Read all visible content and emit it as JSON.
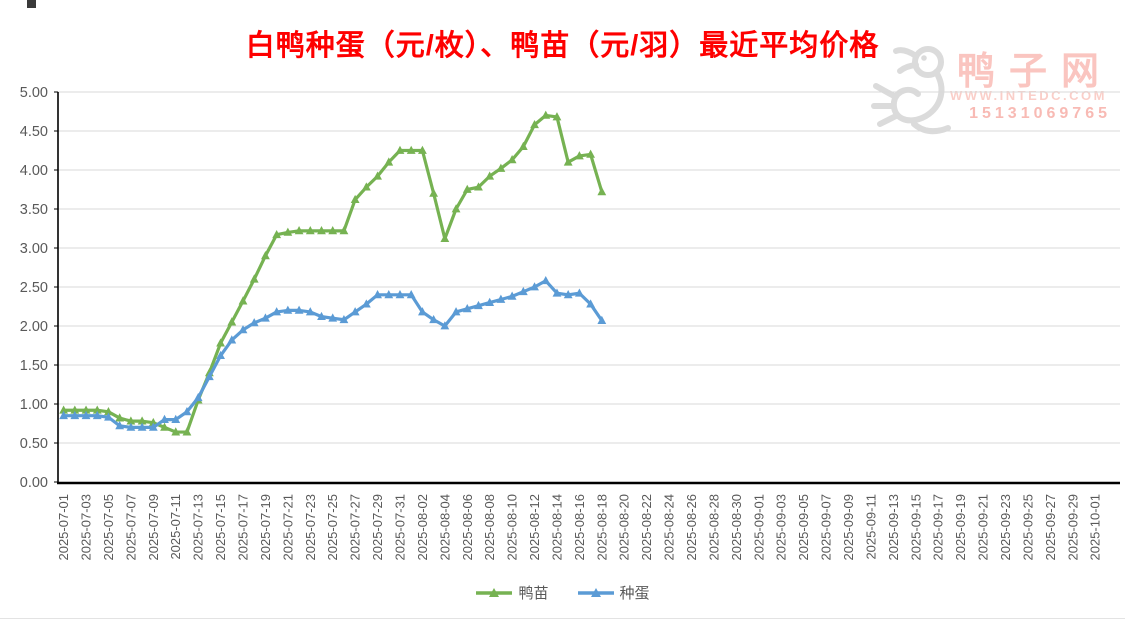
{
  "title": "白鸭种蛋（元/枚）、鸭苗（元/羽）最近平均价格",
  "watermark": {
    "site_name": "鸭子网",
    "url": "WWW.INTEDC.COM",
    "phone": "15131069765",
    "logo": "duck-logo"
  },
  "legend": {
    "items": [
      "鸭苗",
      "种蛋"
    ]
  },
  "colors": {
    "title_red": "#FE0000",
    "duckling_green": "#76B252",
    "egg_blue": "#5B9BD5",
    "axis_text": "#595959",
    "gridline": "#D9D9D9",
    "axis_line": "#000000",
    "watermark_pink": "#F6968C",
    "watermark_gray": "#DBDBDB"
  },
  "chart_data": {
    "type": "line",
    "title": "白鸭种蛋（元/枚）、鸭苗（元/羽）最近平均价格",
    "marker": "triangle",
    "grid": "horizontal",
    "legend_position": "bottom",
    "ylim": [
      0,
      5
    ],
    "y_ticks": [
      "0.00",
      "0.50",
      "1.00",
      "1.50",
      "2.00",
      "2.50",
      "3.00",
      "3.50",
      "4.00",
      "4.50",
      "5.00"
    ],
    "x_axis_span": [
      "2025-07-01",
      "2025-10-01"
    ],
    "x_tick_labels": [
      "2025-07-01",
      "2025-07-03",
      "2025-07-05",
      "2025-07-07",
      "2025-07-09",
      "2025-07-11",
      "2025-07-13",
      "2025-07-15",
      "2025-07-17",
      "2025-07-19",
      "2025-07-21",
      "2025-07-23",
      "2025-07-25",
      "2025-07-27",
      "2025-07-29",
      "2025-07-31",
      "2025-08-02",
      "2025-08-04",
      "2025-08-06",
      "2025-08-08",
      "2025-08-10",
      "2025-08-12",
      "2025-08-14",
      "2025-08-16",
      "2025-08-18",
      "2025-08-20",
      "2025-08-22",
      "2025-08-24",
      "2025-08-26",
      "2025-08-28",
      "2025-08-30",
      "2025-09-01",
      "2025-09-03",
      "2025-09-05",
      "2025-09-07",
      "2025-09-09",
      "2025-09-11",
      "2025-09-13",
      "2025-09-15",
      "2025-09-17",
      "2025-09-19",
      "2025-09-21",
      "2025-09-23",
      "2025-09-25",
      "2025-09-27",
      "2025-09-29",
      "2025-10-01"
    ],
    "x": [
      "2025-07-01",
      "2025-07-02",
      "2025-07-03",
      "2025-07-04",
      "2025-07-05",
      "2025-07-06",
      "2025-07-07",
      "2025-07-08",
      "2025-07-09",
      "2025-07-10",
      "2025-07-11",
      "2025-07-12",
      "2025-07-13",
      "2025-07-14",
      "2025-07-15",
      "2025-07-16",
      "2025-07-17",
      "2025-07-18",
      "2025-07-19",
      "2025-07-20",
      "2025-07-21",
      "2025-07-22",
      "2025-07-23",
      "2025-07-24",
      "2025-07-25",
      "2025-07-26",
      "2025-07-27",
      "2025-07-28",
      "2025-07-29",
      "2025-07-30",
      "2025-07-31",
      "2025-08-01",
      "2025-08-02",
      "2025-08-03",
      "2025-08-04",
      "2025-08-05",
      "2025-08-06",
      "2025-08-07",
      "2025-08-08",
      "2025-08-09",
      "2025-08-10",
      "2025-08-11",
      "2025-08-12",
      "2025-08-13",
      "2025-08-14",
      "2025-08-15",
      "2025-08-16",
      "2025-08-17",
      "2025-08-18"
    ],
    "series": [
      {
        "name": "鸭苗",
        "unit": "元/羽",
        "color": "#76B252",
        "values": [
          0.92,
          0.92,
          0.92,
          0.92,
          0.9,
          0.82,
          0.78,
          0.78,
          0.76,
          0.7,
          0.64,
          0.64,
          1.05,
          1.4,
          1.78,
          2.05,
          2.32,
          2.6,
          2.9,
          3.17,
          3.2,
          3.22,
          3.22,
          3.22,
          3.22,
          3.22,
          3.62,
          3.78,
          3.92,
          4.1,
          4.25,
          4.25,
          4.25,
          3.7,
          3.12,
          3.5,
          3.75,
          3.78,
          3.92,
          4.02,
          4.13,
          4.3,
          4.58,
          4.7,
          4.68,
          4.1,
          4.18,
          4.2,
          3.72
        ]
      },
      {
        "name": "种蛋",
        "unit": "元/枚",
        "color": "#5B9BD5",
        "values": [
          0.85,
          0.85,
          0.85,
          0.85,
          0.83,
          0.72,
          0.7,
          0.7,
          0.7,
          0.8,
          0.8,
          0.9,
          1.08,
          1.35,
          1.62,
          1.82,
          1.95,
          2.04,
          2.1,
          2.18,
          2.2,
          2.2,
          2.18,
          2.12,
          2.1,
          2.08,
          2.18,
          2.28,
          2.4,
          2.4,
          2.4,
          2.4,
          2.18,
          2.08,
          2.0,
          2.18,
          2.22,
          2.26,
          2.3,
          2.34,
          2.38,
          2.44,
          2.5,
          2.58,
          2.42,
          2.4,
          2.42,
          2.28,
          2.07
        ]
      }
    ]
  }
}
